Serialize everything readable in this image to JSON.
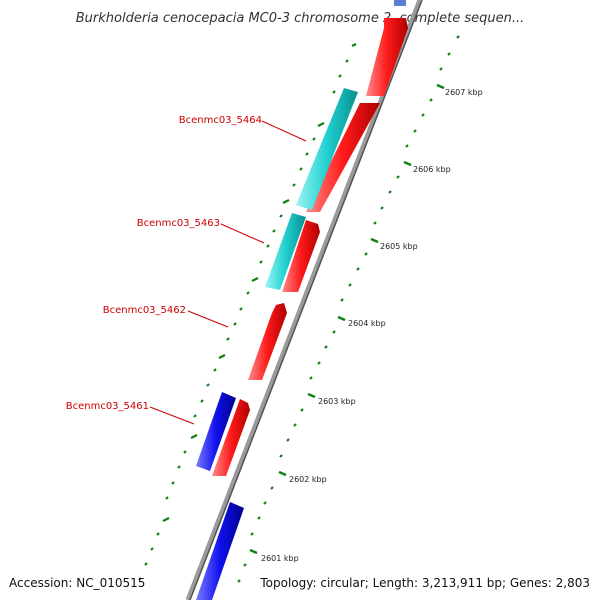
{
  "map": {
    "title": "Burkholderia cenocepacia MC0-3 chromosome 2, complete sequen...",
    "accession_text": "Accession: NC_010515",
    "summary_text": "Topology: circular; Length: 3,213,911 bp; Genes: 2,803"
  },
  "ticks": [
    {
      "label": "2601 kbp"
    },
    {
      "label": "2602 kbp"
    },
    {
      "label": "2603 kbp"
    },
    {
      "label": "2604 kbp"
    },
    {
      "label": "2605 kbp"
    },
    {
      "label": "2606 kbp"
    },
    {
      "label": "2607 kbp"
    }
  ],
  "gene_labels": [
    {
      "text": "Bcenmc03_5464"
    },
    {
      "text": "Bcenmc03_5463"
    },
    {
      "text": "Bcenmc03_5462"
    },
    {
      "text": "Bcenmc03_5461"
    }
  ],
  "colors": {
    "forward_cds": "#ff1a1a",
    "reverse_cds": "#1010ee",
    "reverse_other": "#20d0d0",
    "label_red": "#cc0000",
    "backbone": "#8a8a8a",
    "tick_green": "#108010"
  }
}
